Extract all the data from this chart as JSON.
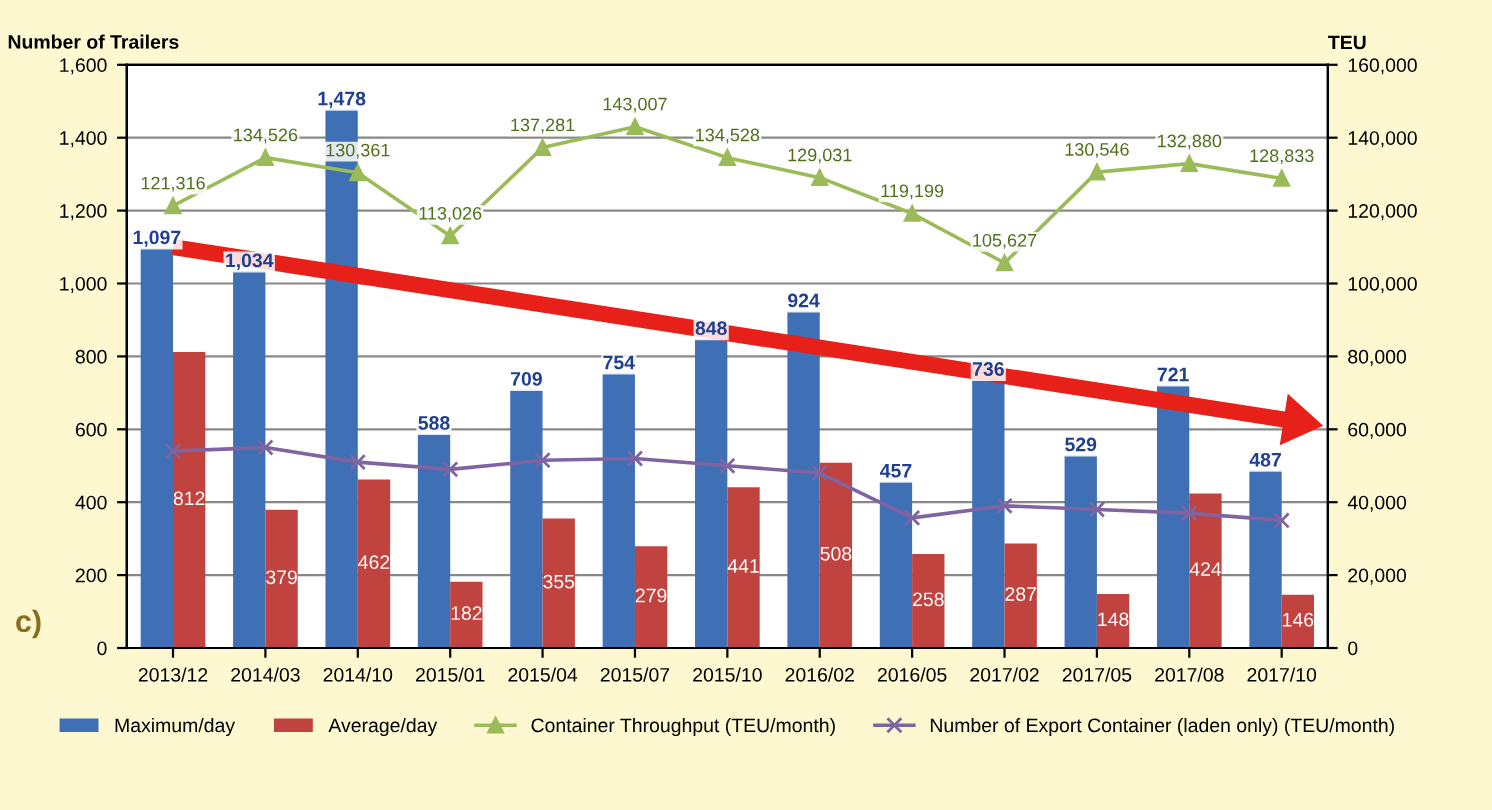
{
  "chart_data": {
    "type": "bar",
    "ylabel": "Number of Trailers",
    "y2label": "TEU",
    "categories": [
      "2013/12",
      "2014/03",
      "2014/10",
      "2015/01",
      "2015/04",
      "2015/07",
      "2015/10",
      "2016/02",
      "2016/05",
      "2017/02",
      "2017/05",
      "2017/08",
      "2017/10"
    ],
    "series": [
      {
        "name": "Maximum/day",
        "color": "#3f6fb5",
        "values": [
          1097,
          1034,
          1478,
          588,
          709,
          754,
          848,
          924,
          457,
          736,
          529,
          721,
          487
        ],
        "value_labels": [
          "1,097",
          "1,034",
          "1,478",
          "588",
          "709",
          "754",
          "848",
          "924",
          "457",
          "736",
          "529",
          "721",
          "487"
        ]
      },
      {
        "name": "Average/day",
        "color": "#c0433f",
        "values": [
          812,
          379,
          462,
          182,
          355,
          279,
          441,
          508,
          258,
          287,
          148,
          424,
          146
        ],
        "value_labels": [
          "812",
          "379",
          "462",
          "182",
          "355",
          "279",
          "441",
          "508",
          "258",
          "287",
          "148",
          "424",
          "146"
        ]
      },
      {
        "name": "Container Throughput (TEU/month)",
        "type": "line",
        "axis": "y2",
        "marker": "triangle",
        "color": "#9bbb59",
        "values": [
          121316,
          134526,
          130361,
          113026,
          137281,
          143007,
          134528,
          129031,
          119199,
          105627,
          130546,
          132880,
          128833
        ],
        "value_labels": [
          "121,316",
          "134,526",
          "130,361",
          "113,026",
          "137,281",
          "143,007",
          "134,528",
          "129,031",
          "119,199",
          "105,627",
          "130,546",
          "132,880",
          "128,833"
        ]
      },
      {
        "name": "Number of Export Container (laden only) (TEU/month)",
        "type": "line",
        "axis": "y2",
        "marker": "cross",
        "color": "#8064a2",
        "values": [
          54000,
          55000,
          51000,
          49000,
          51500,
          52000,
          50000,
          48000,
          35700,
          39000,
          38000,
          37000,
          35000
        ]
      }
    ],
    "ylim": [
      0,
      1600
    ],
    "yticks": [
      0,
      {
        "value": 200,
        "label": "200"
      },
      {
        "value": 400,
        "label": "400"
      },
      {
        "value": 600,
        "label": "600"
      },
      {
        "value": 800,
        "label": "800"
      },
      {
        "value": 1000,
        "label": "1,000"
      },
      {
        "value": 1200,
        "label": "1,200"
      },
      {
        "value": 1400,
        "label": "1,400"
      },
      {
        "value": 1600,
        "label": "1,600"
      }
    ],
    "y2lim": [
      0,
      160000
    ],
    "y2ticks": [
      0,
      {
        "value": 20000,
        "label": "20,000"
      },
      {
        "value": 40000,
        "label": "40,000"
      },
      {
        "value": 60000,
        "label": "60,000"
      },
      {
        "value": 80000,
        "label": "80,000"
      },
      {
        "value": 100000,
        "label": "100,000"
      },
      {
        "value": 120000,
        "label": "120,000"
      },
      {
        "value": 140000,
        "label": "140,000"
      },
      {
        "value": 160000,
        "label": "160,000"
      }
    ],
    "grid": "y",
    "legend": "bottom",
    "annotations": [
      "c)"
    ]
  }
}
